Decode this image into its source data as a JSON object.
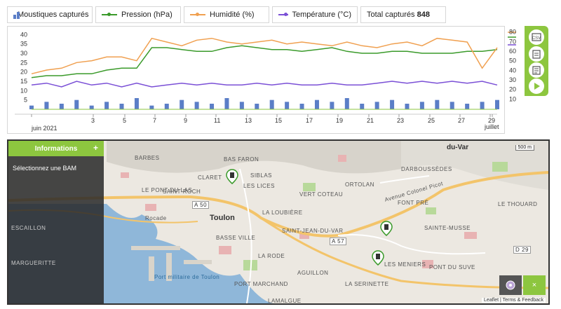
{
  "legend": {
    "mosquitoes": {
      "label": "Moustiques capturés",
      "color": "#5b7ec7"
    },
    "pressure": {
      "label": "Pression (hPa)",
      "color": "#3a9a2a"
    },
    "humidity": {
      "label": "Humidité (%)",
      "color": "#f0a050"
    },
    "temperature": {
      "label": "Température (°C)",
      "color": "#7a4fd6"
    },
    "total_label": "Total capturés",
    "total_value": "848"
  },
  "chart_data": {
    "type": "line",
    "x_ticks": [
      "juin 2021",
      "3",
      "5",
      "7",
      "9",
      "11",
      "13",
      "15",
      "17",
      "19",
      "21",
      "23",
      "25",
      "27",
      "29",
      "juillet"
    ],
    "y_left_ticks": [
      "5",
      "10",
      "15",
      "20",
      "25",
      "30",
      "35",
      "40"
    ],
    "y_right_ticks": [
      "10",
      "20",
      "30",
      "40",
      "50",
      "60",
      "70",
      "80"
    ],
    "y_left_range": [
      0,
      42
    ],
    "y_right_range": [
      0,
      82
    ],
    "series": [
      {
        "name": "Pression (hPa)",
        "color": "#3a9a2a",
        "values": [
          17,
          18,
          18,
          19,
          19,
          21,
          22,
          22,
          33,
          33,
          32,
          31,
          31,
          33,
          34,
          33,
          32,
          32,
          31,
          32,
          33,
          31,
          30,
          30,
          31,
          31,
          30,
          30,
          30,
          31,
          31,
          32
        ]
      },
      {
        "name": "Humidité (%)",
        "color": "#f0a050",
        "values": [
          19,
          21,
          22,
          25,
          26,
          28,
          28,
          26,
          38,
          36,
          34,
          37,
          38,
          36,
          35,
          36,
          37,
          35,
          36,
          35,
          34,
          36,
          34,
          33,
          35,
          36,
          34,
          38,
          37,
          36,
          22,
          33
        ]
      },
      {
        "name": "Température (°C)",
        "color": "#7a4fd6",
        "values": [
          13,
          14,
          12,
          15,
          13,
          14,
          12,
          14,
          12,
          13,
          14,
          13,
          14,
          13,
          13,
          14,
          13,
          14,
          13,
          13,
          14,
          13,
          13,
          14,
          15,
          14,
          15,
          14,
          15,
          14,
          15,
          13
        ]
      },
      {
        "name": "Moustiques capturés",
        "color": "#5b7ec7",
        "values": [
          2,
          4,
          3,
          5,
          2,
          4,
          3,
          6,
          2,
          3,
          5,
          4,
          3,
          6,
          4,
          3,
          5,
          4,
          3,
          5,
          4,
          6,
          3,
          4,
          5,
          3,
          4,
          5,
          4,
          3,
          4,
          5
        ]
      }
    ]
  },
  "map": {
    "info_title": "Informations",
    "info_plus": "+",
    "info_text": "Sélectionnez une BAM",
    "scale": "500 m",
    "attribution": "Leaflet | Terms & Feedback",
    "close_label": "×",
    "places": [
      "BARBES",
      "BAS FARON",
      "SIBLAS",
      "CLARET",
      "LES LICES",
      "LE PONT DU LAS",
      "SAINT-ROCH",
      "LA LOUBIÈRE",
      "VERT COTEAU",
      "ORTOLAN",
      "DARBOUSSÈDES",
      "LE THOUARD",
      "FONT PRÉ",
      "SAINTE-MUSSE",
      "SAINT-JEAN-DU-VAR",
      "BASSE VILLE",
      "LA RODE",
      "AGUILLON",
      "LA SERINETTE",
      "LES MENIERS",
      "PONT DU SUVE",
      "PORT MARCHAND",
      "LAMALGUE",
      "ESCAILLON",
      "MARGUERITTE"
    ],
    "city": "Toulon",
    "region": "du-Var",
    "port_label": "Port militaire de Toulon",
    "roads": [
      "A 50",
      "A 57",
      "D 29",
      "Avenue Colonel Picot",
      "Rocade"
    ]
  }
}
